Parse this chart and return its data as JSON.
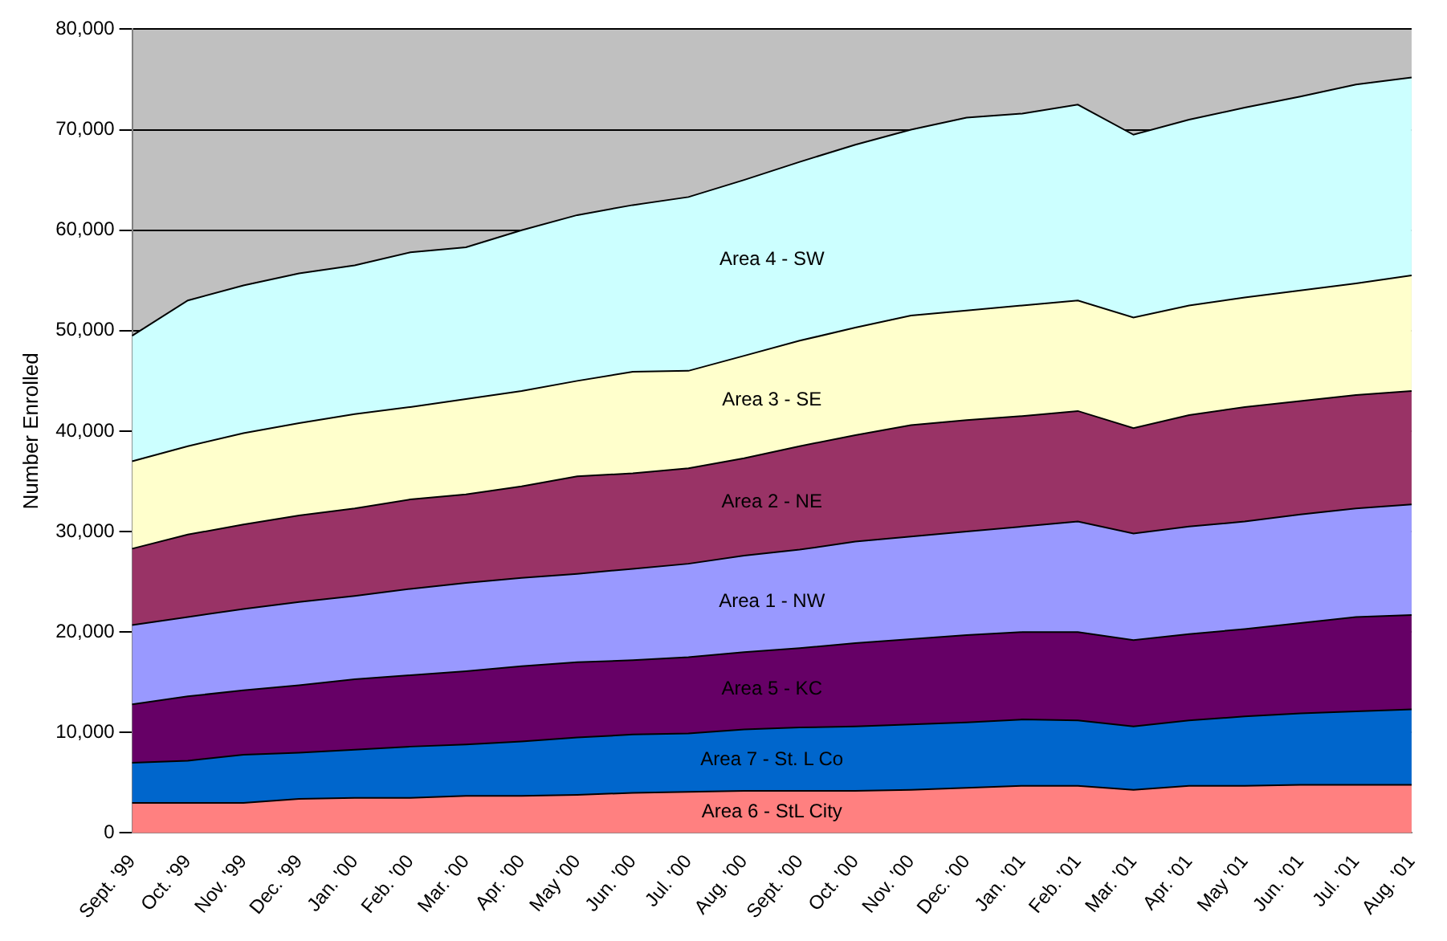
{
  "chart_data": {
    "type": "area",
    "stacked": true,
    "ylabel": "Number Enrolled",
    "categories": [
      "Sept. '99",
      "Oct. '99",
      "Nov. '99",
      "Dec. '99",
      "Jan. '00",
      "Feb. '00",
      "Mar. '00",
      "Apr. '00",
      "May '00",
      "Jun. '00",
      "Jul. '00",
      "Aug. '00",
      "Sept. '00",
      "Oct. '00",
      "Nov. '00",
      "Dec. '00",
      "Jan. '01",
      "Feb. '01",
      "Mar. '01",
      "Apr. '01",
      "May '01",
      "Jun. '01",
      "Jul. '01",
      "Aug. '01"
    ],
    "ylim": [
      0,
      80000
    ],
    "yticks": [
      {
        "value": 0,
        "label": "0"
      },
      {
        "value": 10000,
        "label": "10,000"
      },
      {
        "value": 20000,
        "label": "20,000"
      },
      {
        "value": 30000,
        "label": "30,000"
      },
      {
        "value": 40000,
        "label": "40,000"
      },
      {
        "value": 50000,
        "label": "50,000"
      },
      {
        "value": 60000,
        "label": "60,000"
      },
      {
        "value": 70000,
        "label": "70,000"
      },
      {
        "value": 80000,
        "label": "80,000"
      }
    ],
    "grid": "y",
    "legend": false,
    "series": [
      {
        "name": "Area 6 - StL City",
        "color": "#ff8080",
        "values": [
          3000,
          3000,
          3000,
          3400,
          3500,
          3500,
          3700,
          3700,
          3800,
          4000,
          4100,
          4200,
          4200,
          4200,
          4300,
          4500,
          4700,
          4700,
          4300,
          4700,
          4700,
          4800,
          4800,
          4800
        ]
      },
      {
        "name": "Area 7 - St. L Co",
        "color": "#0066cc",
        "values": [
          4000,
          4200,
          4800,
          4600,
          4800,
          5100,
          5100,
          5400,
          5700,
          5800,
          5800,
          6100,
          6300,
          6400,
          6500,
          6500,
          6600,
          6500,
          6300,
          6500,
          6900,
          7100,
          7300,
          7500
        ]
      },
      {
        "name": "Area 5 - KC",
        "color": "#660066",
        "values": [
          5800,
          6400,
          6400,
          6700,
          7000,
          7100,
          7300,
          7500,
          7500,
          7400,
          7600,
          7700,
          7900,
          8300,
          8500,
          8700,
          8700,
          8800,
          8600,
          8600,
          8700,
          9000,
          9400,
          9400
        ]
      },
      {
        "name": "Area 1 - NW",
        "color": "#9999ff",
        "values": [
          7900,
          7900,
          8100,
          8300,
          8300,
          8600,
          8800,
          8800,
          8800,
          9100,
          9300,
          9600,
          9800,
          10100,
          10200,
          10300,
          10500,
          11000,
          10600,
          10700,
          10700,
          10800,
          10800,
          11000
        ]
      },
      {
        "name": "Area 2 - NE",
        "color": "#993366",
        "values": [
          7600,
          8200,
          8400,
          8600,
          8700,
          8900,
          8800,
          9100,
          9700,
          9500,
          9500,
          9700,
          10300,
          10600,
          11100,
          11100,
          11000,
          11000,
          10500,
          11100,
          11400,
          11300,
          11300,
          11300
        ]
      },
      {
        "name": "Area 3 - SE",
        "color": "#ffffcc",
        "values": [
          8700,
          8800,
          9100,
          9200,
          9400,
          9200,
          9500,
          9500,
          9500,
          10100,
          9700,
          10200,
          10500,
          10700,
          10900,
          10900,
          11000,
          11000,
          11000,
          10900,
          10900,
          11000,
          11100,
          11500
        ]
      },
      {
        "name": "Area 4 - SW",
        "color": "#ccffff",
        "values": [
          12500,
          14500,
          14700,
          14900,
          14800,
          15400,
          15100,
          16000,
          16500,
          16600,
          17300,
          17500,
          17800,
          18200,
          18500,
          19200,
          19100,
          19500,
          18200,
          18500,
          18900,
          19300,
          19800,
          19700
        ]
      }
    ]
  }
}
